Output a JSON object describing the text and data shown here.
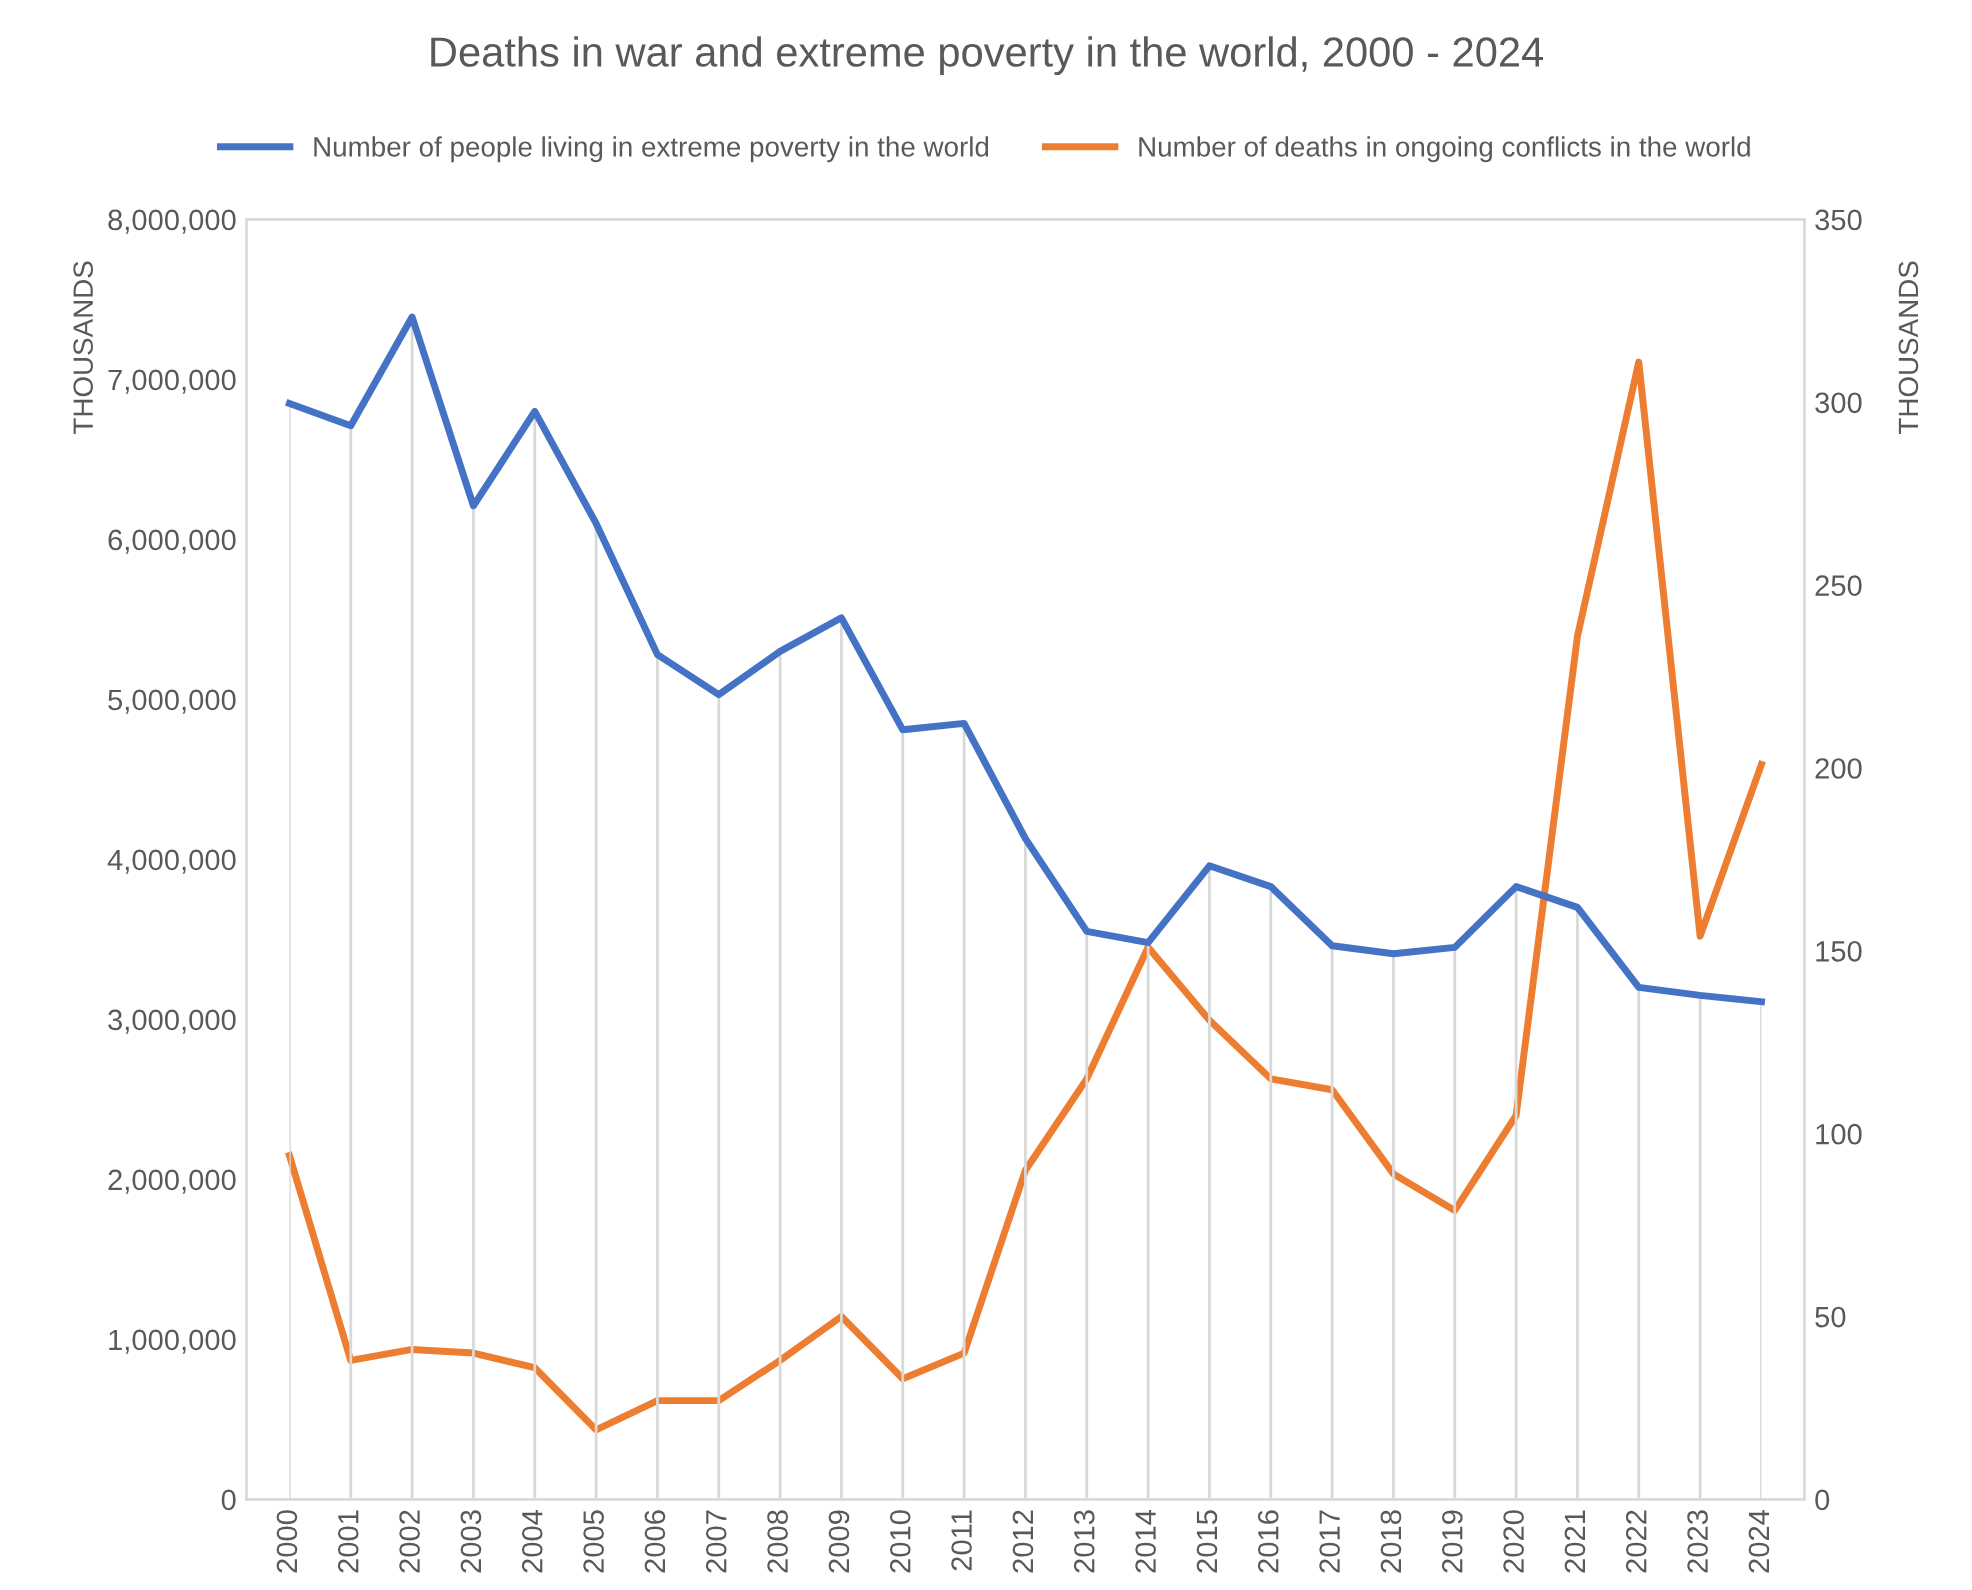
{
  "chart_data": {
    "type": "line",
    "title": "Deaths in war and extreme poverty in the world, 2000 - 2024",
    "ylabel": "THOUSANDS",
    "y2label": "THOUSANDS",
    "categories": [
      "2000",
      "2001",
      "2002",
      "2003",
      "2004",
      "2005",
      "2006",
      "2007",
      "2008",
      "2009",
      "2010",
      "2011",
      "2012",
      "2013",
      "2014",
      "2015",
      "2016",
      "2017",
      "2018",
      "2019",
      "2020",
      "2021",
      "2022",
      "2023",
      "2024"
    ],
    "series": [
      {
        "name": "Number of people living in extreme poverty in the world",
        "color": "#4472c4",
        "values": [
          6850000,
          6710000,
          7390000,
          6210000,
          6800000,
          6100000,
          5280000,
          5030000,
          5300000,
          5510000,
          4810000,
          4850000,
          4130000,
          3550000,
          3480000,
          3960000,
          3830000,
          3460000,
          3410000,
          3450000,
          3830000,
          3700000,
          3200000,
          3150000,
          3110000
        ]
      },
      {
        "name": "Number of deaths in ongoing conflicts in the world",
        "color": "#ed7d31",
        "axis": "y2",
        "values": [
          94,
          38,
          41,
          40,
          36,
          19,
          27,
          27,
          38,
          50,
          33,
          40,
          90,
          115,
          151,
          131,
          115,
          112,
          89,
          79,
          105,
          236,
          311,
          154,
          201
        ]
      }
    ],
    "ylim": [
      0,
      8000000
    ],
    "yticks": [
      0,
      {
        "value": 1000000,
        "label": "1,000,000"
      },
      {
        "value": 2000000,
        "label": "2,000,000"
      },
      {
        "value": 3000000,
        "label": "3,000,000"
      },
      {
        "value": 4000000,
        "label": "4,000,000"
      },
      {
        "value": 5000000,
        "label": "5,000,000"
      },
      {
        "value": 6000000,
        "label": "6,000,000"
      },
      {
        "value": 7000000,
        "label": "7,000,000"
      },
      {
        "value": 8000000,
        "label": "8,000,000"
      }
    ],
    "y2lim": [
      0,
      350
    ],
    "y2ticks": [
      0,
      50,
      100,
      150,
      200,
      250,
      300,
      350
    ],
    "grid": "x",
    "legend": "top",
    "marker": "none",
    "line_style": "solid"
  }
}
